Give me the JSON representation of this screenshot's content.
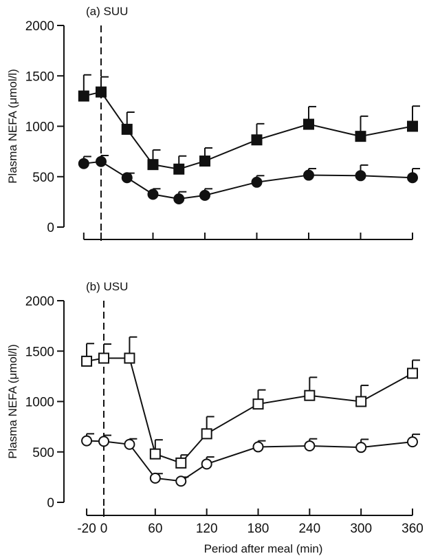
{
  "chart_data": [
    {
      "type": "line",
      "panel_label": "(a) SUU",
      "ylabel": "Plasma NEFA (μmol/l)",
      "xlabel": "",
      "ylim": [
        0,
        2000
      ],
      "xlim": [
        -30,
        370
      ],
      "yticks": [
        0,
        500,
        1000,
        1500,
        2000
      ],
      "xticks": [
        -20,
        0,
        60,
        120,
        180,
        240,
        300,
        360
      ],
      "xtick_labels_shown": false,
      "vline_x": 0,
      "x": [
        -20,
        0,
        30,
        60,
        90,
        120,
        180,
        240,
        300,
        360
      ],
      "series": [
        {
          "marker": "filled-square",
          "values": [
            1300,
            1340,
            970,
            620,
            575,
            655,
            865,
            1020,
            900,
            1000
          ],
          "err": [
            210,
            150,
            170,
            145,
            130,
            130,
            160,
            175,
            200,
            200
          ]
        },
        {
          "marker": "filled-circle",
          "values": [
            630,
            650,
            490,
            325,
            280,
            315,
            445,
            515,
            510,
            490
          ],
          "err": [
            70,
            60,
            45,
            55,
            70,
            65,
            65,
            65,
            105,
            90
          ]
        }
      ]
    },
    {
      "type": "line",
      "panel_label": "(b) USU",
      "ylabel": "Plasma NEFA (μmol/l)",
      "xlabel": "Period after meal (min)",
      "ylim": [
        0,
        2000
      ],
      "xlim": [
        -30,
        370
      ],
      "yticks": [
        0,
        500,
        1000,
        1500,
        2000
      ],
      "xticks": [
        -20,
        0,
        60,
        120,
        180,
        240,
        300,
        360
      ],
      "xtick_labels": [
        "-20",
        "0",
        "60",
        "120",
        "180",
        "240",
        "300",
        "360"
      ],
      "xtick_labels_shown": true,
      "vline_x": 0,
      "x": [
        -20,
        0,
        30,
        60,
        90,
        120,
        180,
        240,
        300,
        360
      ],
      "series": [
        {
          "marker": "open-square",
          "values": [
            1400,
            1430,
            1430,
            480,
            390,
            680,
            975,
            1060,
            1000,
            1280
          ],
          "err": [
            175,
            140,
            210,
            140,
            80,
            170,
            140,
            180,
            160,
            130
          ]
        },
        {
          "marker": "open-circle",
          "values": [
            610,
            605,
            575,
            240,
            210,
            380,
            550,
            560,
            545,
            600
          ],
          "err": [
            70,
            60,
            55,
            45,
            40,
            70,
            60,
            70,
            80,
            75
          ]
        }
      ]
    }
  ]
}
